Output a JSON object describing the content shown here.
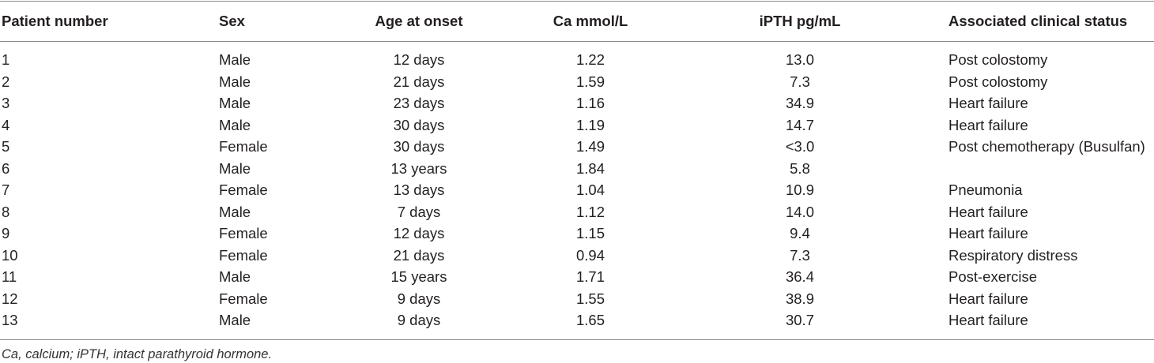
{
  "table": {
    "header": [
      "Patient number",
      "Sex",
      "Age at onset",
      "Ca mmol/L",
      "iPTH pg/mL",
      "Associated clinical status"
    ],
    "rows": [
      [
        "1",
        "Male",
        "12 days",
        "1.22",
        "13.0",
        "Post colostomy"
      ],
      [
        "2",
        "Male",
        "21 days",
        "1.59",
        "7.3",
        "Post colostomy"
      ],
      [
        "3",
        "Male",
        "23 days",
        "1.16",
        "34.9",
        "Heart failure"
      ],
      [
        "4",
        "Male",
        "30 days",
        "1.19",
        "14.7",
        "Heart failure"
      ],
      [
        "5",
        "Female",
        "30 days",
        "1.49",
        "<3.0",
        "Post chemotherapy (Busulfan)"
      ],
      [
        "6",
        "Male",
        "13 years",
        "1.84",
        "5.8",
        null
      ],
      [
        "7",
        "Female",
        "13 days",
        "1.04",
        "10.9",
        "Pneumonia"
      ],
      [
        "8",
        "Male",
        "7 days",
        "1.12",
        "14.0",
        "Heart failure"
      ],
      [
        "9",
        "Female",
        "12 days",
        "1.15",
        "9.4",
        "Heart failure"
      ],
      [
        "10",
        "Female",
        "21 days",
        "0.94",
        "7.3",
        "Respiratory distress"
      ],
      [
        "11",
        "Male",
        "15 years",
        "1.71",
        "36.4",
        "Post-exercise"
      ],
      [
        "12",
        "Female",
        "9 days",
        "1.55",
        "38.9",
        "Heart failure"
      ],
      [
        "13",
        "Male",
        "9 days",
        "1.65",
        "30.7",
        "Heart failure"
      ]
    ],
    "footnote": "Ca, calcium; iPTH, intact parathyroid hormone."
  }
}
